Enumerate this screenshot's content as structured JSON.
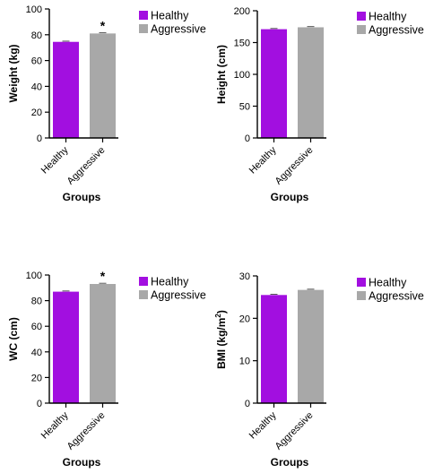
{
  "colors": {
    "healthy": "#A20FE0",
    "aggressive": "#A8A8A8",
    "axis": "#000000"
  },
  "chart_data": [
    {
      "type": "bar",
      "panel": "top-left",
      "categories": [
        "Healthy",
        "Aggressive"
      ],
      "values": [
        74.5,
        81
      ],
      "ylabel": "Weight (kg)",
      "xlabel": "Groups",
      "ylim": [
        0,
        100
      ],
      "yticks": [
        "0",
        "20",
        "40",
        "60",
        "80",
        "100"
      ],
      "significance": [
        {
          "category": "Aggressive",
          "mark": "*"
        }
      ],
      "legend": [
        "Healthy",
        "Aggressive"
      ],
      "legend_position": "top-right",
      "grid": false
    },
    {
      "type": "bar",
      "panel": "top-right",
      "categories": [
        "Healthy",
        "Aggressive"
      ],
      "values": [
        171,
        174
      ],
      "ylabel": "Height (cm)",
      "xlabel": "Groups",
      "ylim": [
        0,
        200
      ],
      "yticks": [
        "0",
        "50",
        "100",
        "150",
        "200"
      ],
      "significance": [],
      "legend": [
        "Healthy",
        "Aggressive"
      ],
      "legend_position": "top-right",
      "grid": false
    },
    {
      "type": "bar",
      "panel": "bottom-left",
      "categories": [
        "Healthy",
        "Aggressive"
      ],
      "values": [
        87,
        93
      ],
      "ylabel": "WC (cm)",
      "xlabel": "Groups",
      "ylim": [
        0,
        100
      ],
      "yticks": [
        "0",
        "20",
        "40",
        "60",
        "80",
        "100"
      ],
      "significance": [
        {
          "category": "Aggressive",
          "mark": "*"
        }
      ],
      "legend": [
        "Healthy",
        "Aggressive"
      ],
      "legend_position": "top-right",
      "grid": false
    },
    {
      "type": "bar",
      "panel": "bottom-right",
      "categories": [
        "Healthy",
        "Aggressive"
      ],
      "values": [
        25.5,
        26.7
      ],
      "ylabel": "BMI (kg/m2)",
      "ylabel_base": "BMI (kg/m",
      "ylabel_sup": "2",
      "ylabel_end": ")",
      "xlabel": "Groups",
      "ylim": [
        0,
        30
      ],
      "yticks": [
        "0",
        "10",
        "20",
        "30"
      ],
      "significance": [],
      "legend": [
        "Healthy",
        "Aggressive"
      ],
      "legend_position": "top-right",
      "grid": false
    }
  ]
}
